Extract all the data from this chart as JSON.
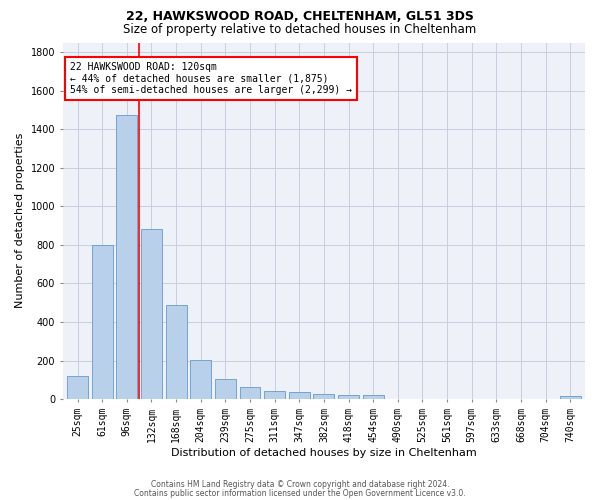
{
  "title1": "22, HAWKSWOOD ROAD, CHELTENHAM, GL51 3DS",
  "title2": "Size of property relative to detached houses in Cheltenham",
  "xlabel": "Distribution of detached houses by size in Cheltenham",
  "ylabel": "Number of detached properties",
  "categories": [
    "25sqm",
    "61sqm",
    "96sqm",
    "132sqm",
    "168sqm",
    "204sqm",
    "239sqm",
    "275sqm",
    "311sqm",
    "347sqm",
    "382sqm",
    "418sqm",
    "454sqm",
    "490sqm",
    "525sqm",
    "561sqm",
    "597sqm",
    "633sqm",
    "668sqm",
    "704sqm",
    "740sqm"
  ],
  "values": [
    120,
    800,
    1475,
    880,
    490,
    205,
    105,
    65,
    40,
    35,
    25,
    20,
    20,
    0,
    0,
    0,
    0,
    0,
    0,
    0,
    15
  ],
  "bar_color": "#b8d0ea",
  "bar_edge_color": "#6699cc",
  "vline_index": 2,
  "annotation_text": "22 HAWKSWOOD ROAD: 120sqm\n← 44% of detached houses are smaller (1,875)\n54% of semi-detached houses are larger (2,299) →",
  "annotation_box_color": "white",
  "annotation_box_edge": "red",
  "vline_color": "red",
  "ylim": [
    0,
    1850
  ],
  "yticks": [
    0,
    200,
    400,
    600,
    800,
    1000,
    1200,
    1400,
    1600,
    1800
  ],
  "footer1": "Contains HM Land Registry data © Crown copyright and database right 2024.",
  "footer2": "Contains public sector information licensed under the Open Government Licence v3.0.",
  "background_color": "#eef2f8",
  "grid_color": "#c5cfe0",
  "fig_width": 6.0,
  "fig_height": 5.0,
  "title1_fontsize": 9.0,
  "title2_fontsize": 8.5,
  "ylabel_fontsize": 8.0,
  "xlabel_fontsize": 8.0,
  "tick_fontsize": 7.0,
  "annot_fontsize": 7.0,
  "footer_fontsize": 5.5
}
